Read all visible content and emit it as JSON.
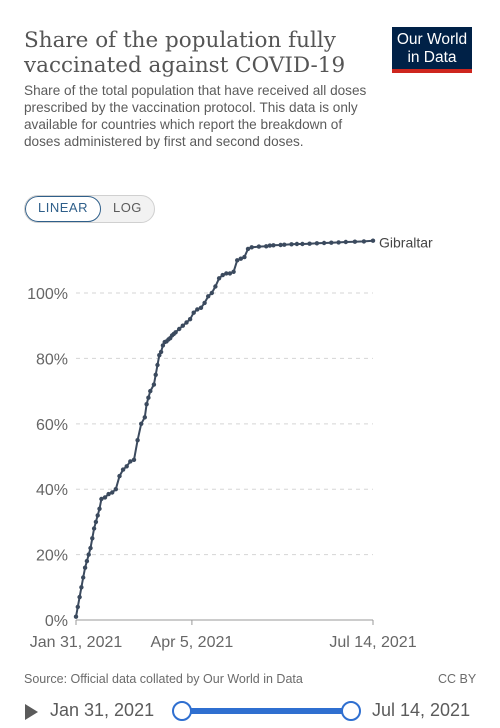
{
  "header": {
    "title": "Share of the population fully vaccinated against COVID-19",
    "subtitle": "Share of the total population that have received all doses prescribed by the vaccination protocol. This data is only available for countries which report the breakdown of doses administered by first and second doses.",
    "logo_line1": "Our World",
    "logo_line2": "in Data"
  },
  "controls": {
    "linear_label": "LINEAR",
    "log_label": "LOG",
    "selected": "linear"
  },
  "footer": {
    "source": "Source: Official data collated by Our World in Data",
    "license": "CC BY"
  },
  "timeline": {
    "start_label": "Jan 31, 2021",
    "end_label": "Jul 14, 2021"
  },
  "colors": {
    "series": "#3b4a5e",
    "grid": "#d5d5d5",
    "axis": "#999999",
    "accent": "#2f6fd0"
  },
  "chart_data": {
    "type": "line",
    "yscale": "linear",
    "ylim": [
      0,
      115
    ],
    "yticks": [
      0,
      20,
      40,
      60,
      80,
      100
    ],
    "ytick_labels": [
      "0%",
      "20%",
      "40%",
      "60%",
      "80%",
      "100%"
    ],
    "xlim": [
      "2021-01-31",
      "2021-07-14"
    ],
    "xticks": [
      "2021-01-31",
      "2021-04-05",
      "2021-07-14"
    ],
    "xtick_labels": [
      "Jan 31, 2021",
      "Apr 5, 2021",
      "Jul 14, 2021"
    ],
    "grid": true,
    "series": [
      {
        "name": "Gibraltar",
        "x": [
          "2021-01-31",
          "2021-02-01",
          "2021-02-02",
          "2021-02-03",
          "2021-02-04",
          "2021-02-05",
          "2021-02-06",
          "2021-02-07",
          "2021-02-08",
          "2021-02-09",
          "2021-02-10",
          "2021-02-11",
          "2021-02-12",
          "2021-02-13",
          "2021-02-14",
          "2021-02-16",
          "2021-02-18",
          "2021-02-20",
          "2021-02-22",
          "2021-02-24",
          "2021-02-26",
          "2021-02-28",
          "2021-03-02",
          "2021-03-04",
          "2021-03-06",
          "2021-03-08",
          "2021-03-10",
          "2021-03-11",
          "2021-03-12",
          "2021-03-13",
          "2021-03-15",
          "2021-03-16",
          "2021-03-17",
          "2021-03-18",
          "2021-03-19",
          "2021-03-20",
          "2021-03-21",
          "2021-03-22",
          "2021-03-23",
          "2021-03-24",
          "2021-03-25",
          "2021-03-26",
          "2021-03-27",
          "2021-03-29",
          "2021-03-31",
          "2021-04-02",
          "2021-04-04",
          "2021-04-06",
          "2021-04-08",
          "2021-04-10",
          "2021-04-12",
          "2021-04-14",
          "2021-04-16",
          "2021-04-18",
          "2021-04-20",
          "2021-04-22",
          "2021-04-24",
          "2021-04-26",
          "2021-04-28",
          "2021-04-30",
          "2021-05-02",
          "2021-05-04",
          "2021-05-06",
          "2021-05-08",
          "2021-05-12",
          "2021-05-16",
          "2021-05-18",
          "2021-05-20",
          "2021-05-24",
          "2021-05-26",
          "2021-05-30",
          "2021-06-02",
          "2021-06-05",
          "2021-06-09",
          "2021-06-13",
          "2021-06-17",
          "2021-06-21",
          "2021-06-25",
          "2021-06-29",
          "2021-07-04",
          "2021-07-09",
          "2021-07-14"
        ],
        "y": [
          1,
          4,
          7,
          10,
          13,
          16,
          18,
          20,
          22,
          25,
          28,
          30,
          32,
          34,
          37,
          37.5,
          38.5,
          39,
          40,
          44,
          46,
          47,
          48.5,
          49,
          55,
          60,
          62,
          66,
          68,
          70,
          72,
          75,
          78,
          81,
          82,
          84,
          85,
          85.2,
          85.8,
          86.2,
          87,
          87.5,
          88,
          89,
          90,
          91,
          92,
          94,
          95,
          95.5,
          97,
          99,
          100,
          102,
          104.5,
          105.5,
          106,
          106,
          106.5,
          110,
          110.5,
          111,
          113.5,
          114,
          114.2,
          114.3,
          114.5,
          114.6,
          114.7,
          114.8,
          114.9,
          115,
          115,
          115.1,
          115.2,
          115.3,
          115.4,
          115.5,
          115.6,
          115.7,
          115.8,
          116
        ]
      }
    ]
  }
}
